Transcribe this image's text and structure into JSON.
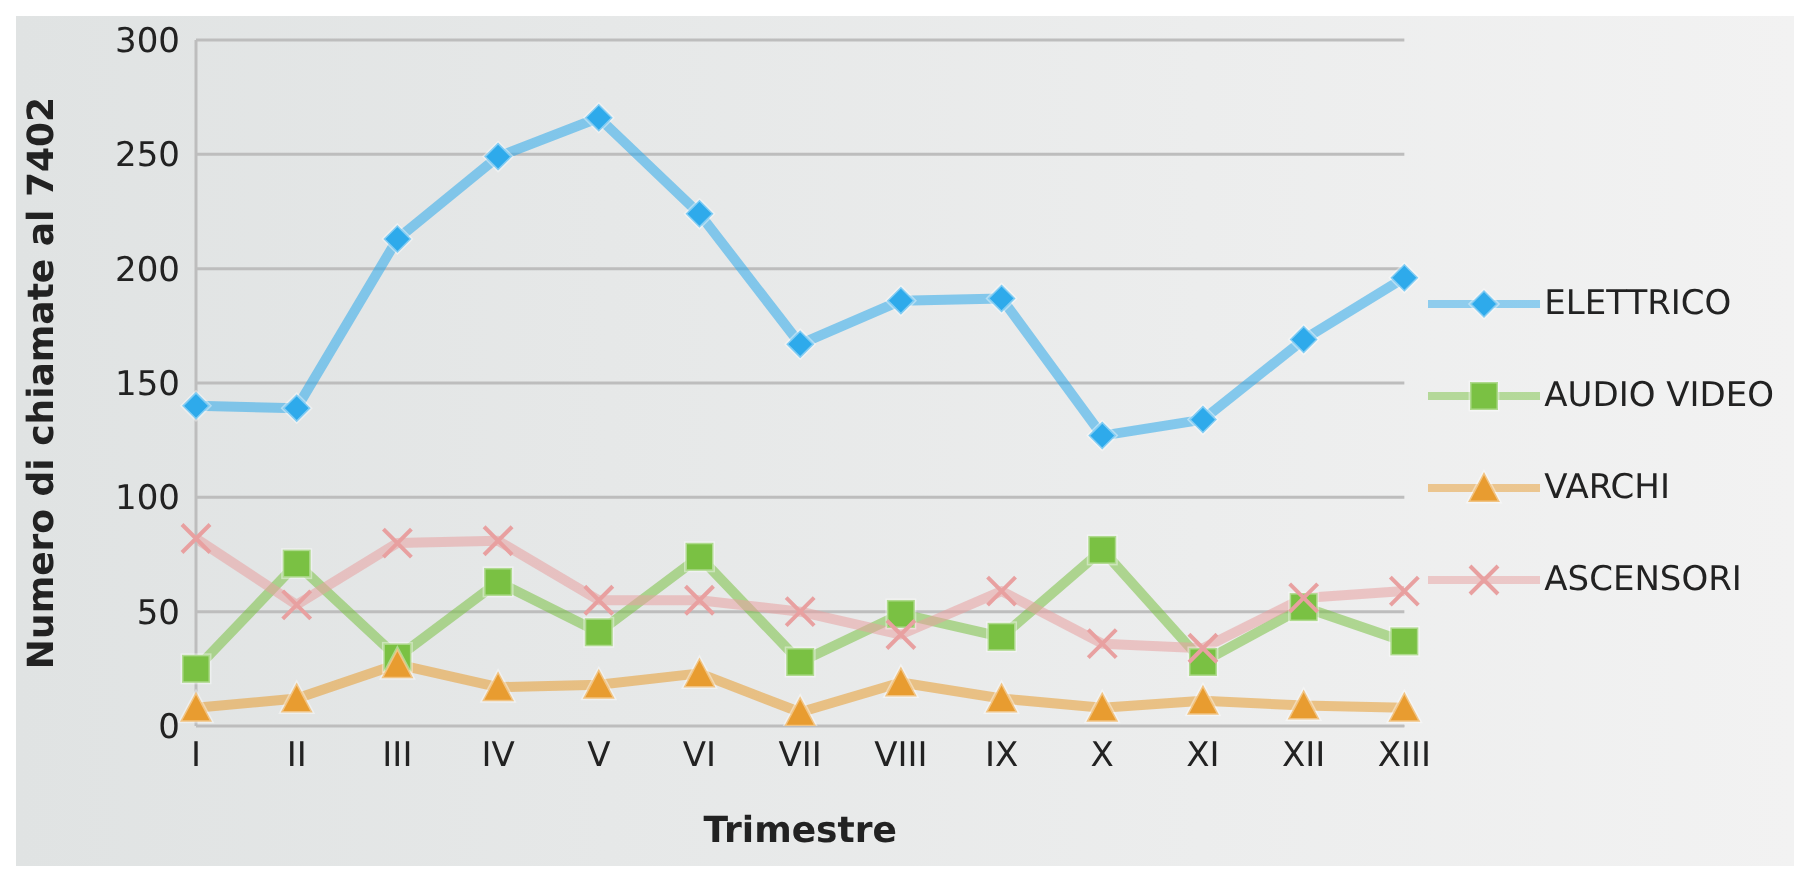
{
  "chart_data": {
    "type": "line",
    "xlabel": "Trimestre",
    "ylabel": "Numero di chiamate al 7402",
    "categories": [
      "I",
      "II",
      "III",
      "IV",
      "V",
      "VI",
      "VII",
      "VIII",
      "IX",
      "X",
      "XI",
      "XII",
      "XIII"
    ],
    "series": [
      {
        "name": "ELETTRICO",
        "color": "#2eaaeb",
        "marker": "diamond",
        "values": [
          140,
          139,
          213,
          249,
          266,
          224,
          167,
          186,
          187,
          127,
          134,
          169,
          196
        ]
      },
      {
        "name": "AUDIO VIDEO",
        "color": "#7ac143",
        "marker": "square",
        "values": [
          25,
          71,
          30,
          63,
          41,
          74,
          28,
          49,
          39,
          77,
          28,
          52,
          37
        ]
      },
      {
        "name": "VARCHI",
        "color": "#e89c30",
        "marker": "triangle",
        "values": [
          8,
          12,
          27,
          17,
          18,
          23,
          6,
          19,
          12,
          8,
          11,
          9,
          8
        ]
      },
      {
        "name": "ASCENSORI",
        "color": "#e8a0a0",
        "marker": "cross",
        "values": [
          82,
          53,
          80,
          81,
          55,
          55,
          50,
          40,
          59,
          36,
          34,
          56,
          59
        ]
      }
    ],
    "ylim": [
      0,
      300
    ],
    "yticks": [
      0,
      50,
      100,
      150,
      200,
      250,
      300
    ],
    "grid": "y",
    "legend": "right"
  }
}
